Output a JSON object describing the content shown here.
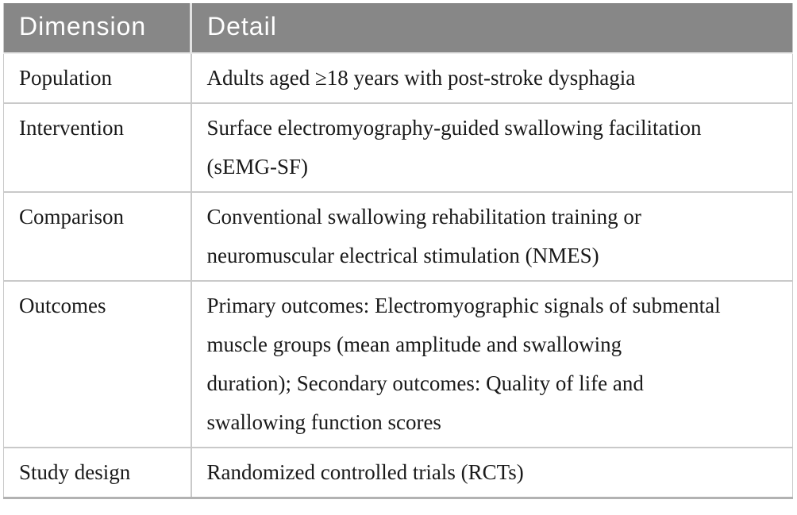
{
  "table": {
    "columns": [
      {
        "label": "Dimension"
      },
      {
        "label": "Detail"
      }
    ],
    "rows": [
      {
        "dimension": "Population",
        "detail": "Adults aged ≥18 years with post-stroke dysphagia"
      },
      {
        "dimension": "Intervention",
        "detail": "Surface electromyography-guided swallowing facilitation\n(sEMG-SF)"
      },
      {
        "dimension": "Comparison",
        "detail": "Conventional swallowing rehabilitation training or\nneuromuscular electrical stimulation (NMES)"
      },
      {
        "dimension": "Outcomes",
        "detail": "Primary outcomes: Electromyographic signals of submental\nmuscle groups (mean amplitude and swallowing\nduration); Secondary outcomes: Quality of life and\nswallowing function scores"
      },
      {
        "dimension": "Study design",
        "detail": "Randomized controlled trials (RCTs)"
      }
    ],
    "colors": {
      "header_bg": "#878787",
      "header_text": "#ffffff",
      "body_text": "#1a1a1a",
      "row_border": "#c9c9c9",
      "bottom_border": "#b2b2b2"
    }
  }
}
